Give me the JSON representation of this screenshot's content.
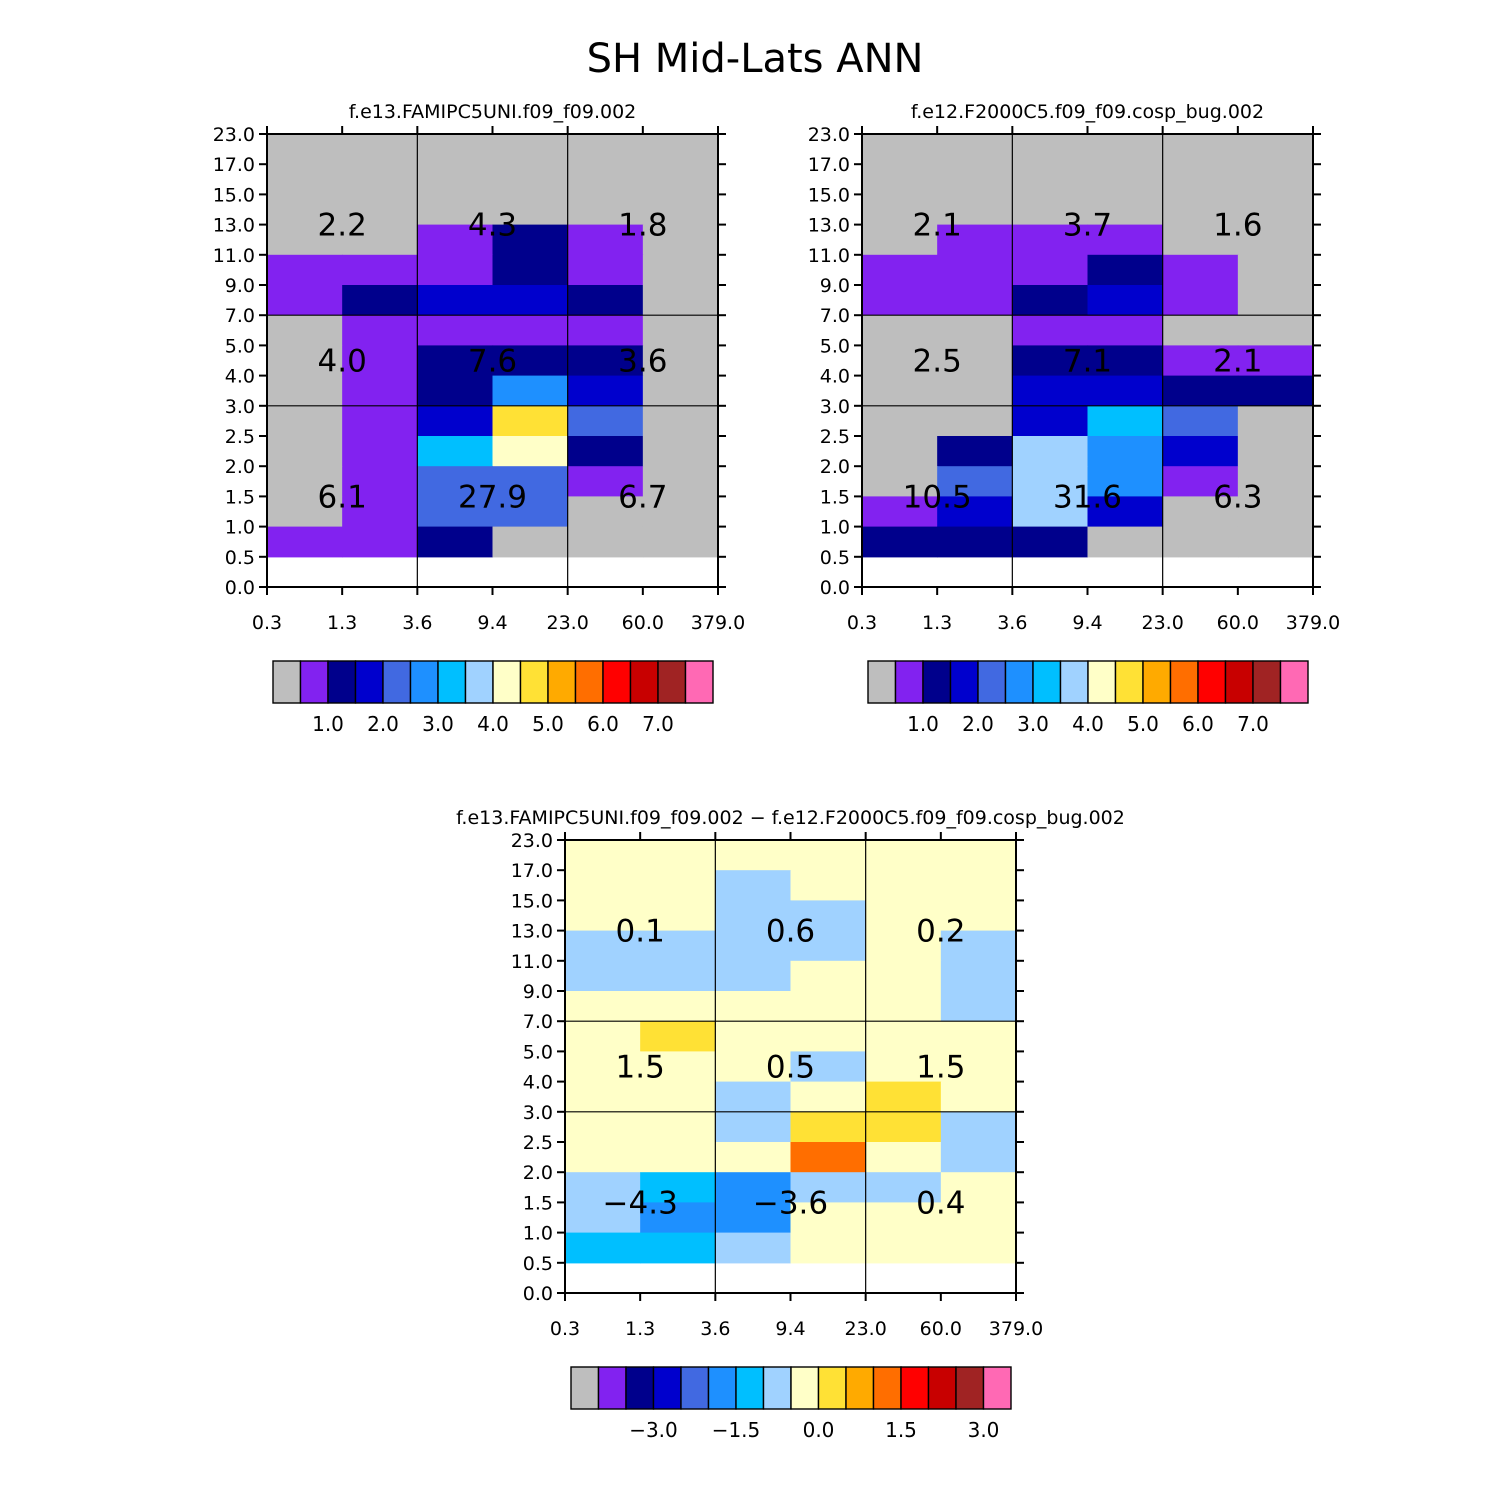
{
  "figure_title": "SH Mid-Lats ANN",
  "chart_data": [
    {
      "type": "heatmap",
      "title": "f.e13.FAMIPC5UNI.f09_f09.002",
      "xlabel": "",
      "ylabel": "",
      "x_ticks": [
        "0.3",
        "1.3",
        "3.6",
        "9.4",
        "23.0",
        "60.0",
        "379.0"
      ],
      "y_ticks": [
        "0.0",
        "0.5",
        "1.0",
        "1.5",
        "2.0",
        "2.5",
        "3.0",
        "4.0",
        "5.0",
        "7.0",
        "9.0",
        "11.0",
        "13.0",
        "15.0",
        "17.0",
        "23.0"
      ],
      "cells": [
        [
          0,
          0,
          0,
          0,
          0,
          0
        ],
        [
          0,
          0,
          0,
          0,
          0,
          0
        ],
        [
          0,
          0,
          0,
          0,
          0,
          0
        ],
        [
          0,
          0,
          1,
          2,
          1,
          0
        ],
        [
          1,
          1,
          1,
          2,
          1,
          0
        ],
        [
          1,
          2,
          3,
          3,
          2,
          0
        ],
        [
          0,
          1,
          1,
          1,
          1,
          0
        ],
        [
          0,
          1,
          2,
          2,
          2,
          0
        ],
        [
          0,
          1,
          2,
          5,
          3,
          0
        ],
        [
          0,
          1,
          3,
          9,
          4,
          0
        ],
        [
          0,
          1,
          6,
          8,
          2,
          0
        ],
        [
          0,
          1,
          4,
          4,
          1,
          0
        ],
        [
          0,
          1,
          4,
          4,
          0,
          0
        ],
        [
          1,
          1,
          2,
          0,
          0,
          0
        ]
      ],
      "box_values": [
        [
          "2.2",
          "4.3",
          "1.8"
        ],
        [
          "4.0",
          "7.6",
          "3.6"
        ],
        [
          "6.1",
          "27.9",
          "6.7"
        ]
      ],
      "colorbar_labels": [
        "1.0",
        "2.0",
        "3.0",
        "4.0",
        "5.0",
        "6.0",
        "7.0"
      ]
    },
    {
      "type": "heatmap",
      "title": "f.e12.F2000C5.f09_f09.cosp_bug.002",
      "xlabel": "",
      "ylabel": "",
      "x_ticks": [
        "0.3",
        "1.3",
        "3.6",
        "9.4",
        "23.0",
        "60.0",
        "379.0"
      ],
      "y_ticks": [
        "0.0",
        "0.5",
        "1.0",
        "1.5",
        "2.0",
        "2.5",
        "3.0",
        "4.0",
        "5.0",
        "7.0",
        "9.0",
        "11.0",
        "13.0",
        "15.0",
        "17.0",
        "23.0"
      ],
      "cells": [
        [
          0,
          0,
          0,
          0,
          0,
          0
        ],
        [
          0,
          0,
          0,
          0,
          0,
          0
        ],
        [
          0,
          0,
          0,
          0,
          0,
          0
        ],
        [
          0,
          1,
          1,
          1,
          0,
          0
        ],
        [
          1,
          1,
          1,
          2,
          1,
          0
        ],
        [
          1,
          1,
          2,
          3,
          1,
          0
        ],
        [
          0,
          0,
          1,
          1,
          0,
          0
        ],
        [
          0,
          0,
          2,
          2,
          1,
          1
        ],
        [
          0,
          0,
          3,
          3,
          2,
          2
        ],
        [
          0,
          0,
          3,
          6,
          4,
          0
        ],
        [
          0,
          2,
          7,
          5,
          3,
          0
        ],
        [
          0,
          4,
          7,
          5,
          1,
          0
        ],
        [
          1,
          3,
          7,
          3,
          0,
          0
        ],
        [
          2,
          2,
          2,
          0,
          0,
          0
        ]
      ],
      "box_values": [
        [
          "2.1",
          "3.7",
          "1.6"
        ],
        [
          "2.5",
          "7.1",
          "2.1"
        ],
        [
          "10.5",
          "31.6",
          "6.3"
        ]
      ],
      "colorbar_labels": [
        "1.0",
        "2.0",
        "3.0",
        "4.0",
        "5.0",
        "6.0",
        "7.0"
      ]
    },
    {
      "type": "heatmap",
      "title": "f.e13.FAMIPC5UNI.f09_f09.002 − f.e12.F2000C5.f09_f09.cosp_bug.002",
      "xlabel": "",
      "ylabel": "",
      "x_ticks": [
        "0.3",
        "1.3",
        "3.6",
        "9.4",
        "23.0",
        "60.0",
        "379.0"
      ],
      "y_ticks": [
        "0.0",
        "0.5",
        "1.0",
        "1.5",
        "2.0",
        "2.5",
        "3.0",
        "4.0",
        "5.0",
        "7.0",
        "9.0",
        "11.0",
        "13.0",
        "15.0",
        "17.0",
        "23.0"
      ],
      "cells": [
        [
          8,
          8,
          8,
          8,
          8,
          8
        ],
        [
          8,
          8,
          7,
          8,
          8,
          8
        ],
        [
          8,
          8,
          7,
          7,
          8,
          8
        ],
        [
          7,
          7,
          7,
          7,
          8,
          7
        ],
        [
          7,
          7,
          7,
          8,
          8,
          7
        ],
        [
          8,
          8,
          8,
          8,
          8,
          7
        ],
        [
          8,
          9,
          8,
          8,
          8,
          8
        ],
        [
          8,
          8,
          8,
          7,
          8,
          8
        ],
        [
          8,
          8,
          7,
          8,
          9,
          8
        ],
        [
          8,
          8,
          7,
          9,
          9,
          7
        ],
        [
          8,
          8,
          8,
          11,
          8,
          7
        ],
        [
          7,
          6,
          5,
          7,
          7,
          8
        ],
        [
          7,
          5,
          5,
          8,
          8,
          8
        ],
        [
          6,
          6,
          7,
          8,
          8,
          8
        ]
      ],
      "box_values": [
        [
          "0.1",
          "0.6",
          "0.2"
        ],
        [
          "1.5",
          "0.5",
          "1.5"
        ],
        [
          "−4.3",
          "−3.6",
          "0.4"
        ]
      ],
      "colorbar_labels": [
        "−3.0",
        "−1.5",
        "0.0",
        "1.5",
        "3.0"
      ]
    }
  ],
  "palette": [
    "#bebebe",
    "#8222f0",
    "#00008c",
    "#0000cd",
    "#4169e1",
    "#1e90ff",
    "#00bfff",
    "#a0d2ff",
    "#ffffc8",
    "#ffe135",
    "#ffaa00",
    "#ff6e00",
    "#ff0000",
    "#c80000",
    "#a02323",
    "#ff69b4"
  ]
}
